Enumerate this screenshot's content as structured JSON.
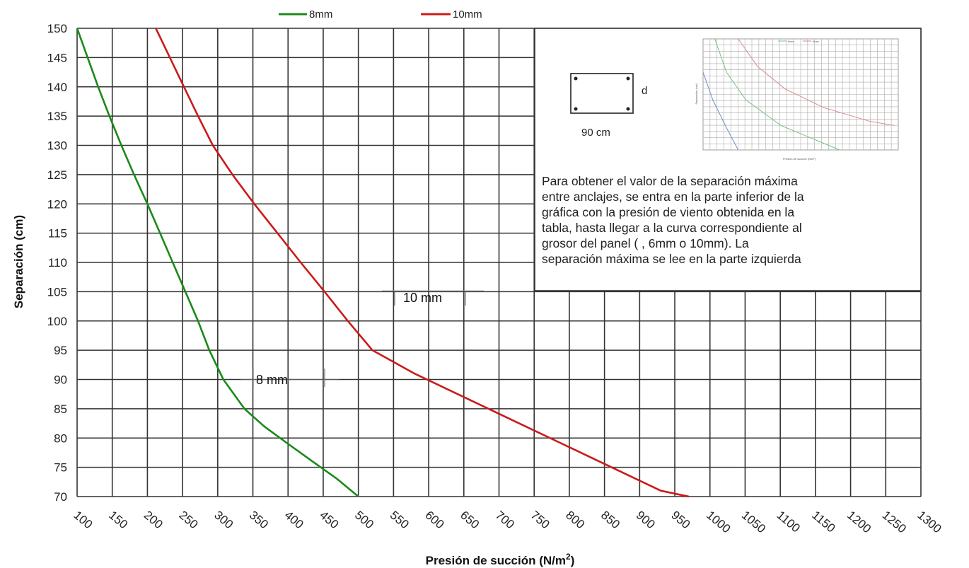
{
  "chart_data": {
    "type": "line",
    "xlabel": "Presión de succión (N/m²)",
    "ylabel": "Separación (cm)",
    "xlim": [
      100,
      1300
    ],
    "ylim": [
      70,
      150
    ],
    "x_ticks": [
      100,
      150,
      200,
      250,
      300,
      350,
      400,
      450,
      500,
      550,
      600,
      650,
      700,
      750,
      800,
      850,
      900,
      950,
      1000,
      1050,
      1100,
      1150,
      1200,
      1250,
      1300
    ],
    "y_ticks": [
      70,
      75,
      80,
      85,
      90,
      95,
      100,
      105,
      110,
      115,
      120,
      125,
      130,
      135,
      140,
      145,
      150
    ],
    "grid": true,
    "legend": "top",
    "series": [
      {
        "name": "8mm",
        "color": "#1a8a1a",
        "points": [
          [
            100,
            150
          ],
          [
            115,
            145
          ],
          [
            130,
            140
          ],
          [
            146,
            135
          ],
          [
            163,
            130
          ],
          [
            181,
            125
          ],
          [
            200,
            120
          ],
          [
            218,
            115
          ],
          [
            236,
            110
          ],
          [
            254,
            105
          ],
          [
            272,
            100
          ],
          [
            288,
            95
          ],
          [
            308,
            90
          ],
          [
            338,
            85
          ],
          [
            366,
            82
          ],
          [
            400,
            79
          ],
          [
            435,
            76
          ],
          [
            470,
            73
          ],
          [
            500,
            70
          ]
        ]
      },
      {
        "name": "10mm",
        "color": "#cc1a1a",
        "points": [
          [
            212,
            150
          ],
          [
            232,
            145
          ],
          [
            252,
            140
          ],
          [
            272,
            135
          ],
          [
            293,
            130
          ],
          [
            321,
            125
          ],
          [
            352,
            120
          ],
          [
            385,
            115
          ],
          [
            418,
            110
          ],
          [
            452,
            105
          ],
          [
            485,
            100
          ],
          [
            520,
            95
          ],
          [
            580,
            91
          ],
          [
            650,
            87
          ],
          [
            720,
            83
          ],
          [
            790,
            79
          ],
          [
            860,
            75
          ],
          [
            930,
            71
          ],
          [
            970,
            70
          ]
        ]
      }
    ],
    "annotations": [
      "8 mm",
      "10 mm"
    ]
  },
  "legend": {
    "items": [
      {
        "label": "8mm",
        "color": "#1a8a1a"
      },
      {
        "label": "10mm",
        "color": "#cc1a1a"
      }
    ]
  },
  "inset": {
    "width_label": "90 cm",
    "depth_label": "d",
    "note_lines": [
      "Para obtener el valor de la separación máxima",
      "entre anclajes, se entra en la parte inferior de la",
      "gráfica con la presión de viento obtenida en la",
      "tabla, hasta llegar a la curva correspondiente al",
      "grosor del panel (       , 6mm o 10mm). La",
      "separación máxima se lee en la parte izquierda"
    ],
    "thumbnail_xlabel": "Presión de succión (N/m²)",
    "thumbnail_ylabel": "Separación (cm)",
    "thumbnail_legend": [
      "6mm",
      "8mm"
    ]
  }
}
